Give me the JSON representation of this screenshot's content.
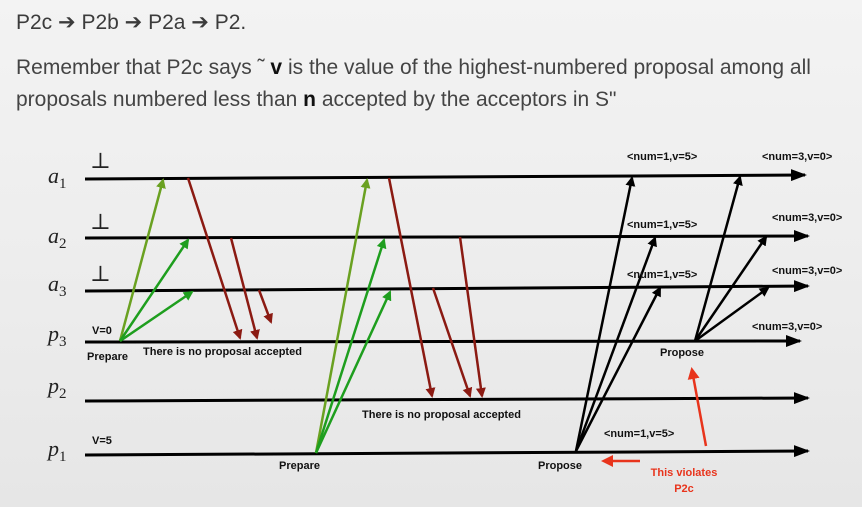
{
  "header": {
    "title": "P2c ➔ P2b ➔ P2a ➔ P2.",
    "subtitle_parts": [
      "Remember that P2c says ˜ ",
      "v",
      " is the value of the highest-numbered proposal among all proposals numbered less than ",
      "n",
      " accepted by the acceptors in S\""
    ]
  },
  "processes": [
    {
      "id": "a1",
      "letter": "a",
      "sub": "1",
      "init": "⊥"
    },
    {
      "id": "a2",
      "letter": "a",
      "sub": "2",
      "init": "⊥"
    },
    {
      "id": "a3",
      "letter": "a",
      "sub": "3",
      "init": "⊥"
    },
    {
      "id": "p3",
      "letter": "p",
      "sub": "3",
      "init": "V=0"
    },
    {
      "id": "p2",
      "letter": "p",
      "sub": "2",
      "init": ""
    },
    {
      "id": "p1",
      "letter": "p",
      "sub": "1",
      "init": "V=5"
    }
  ],
  "labels": {
    "prepare_p3": "Prepare",
    "no_proposal_1": "There is no proposal accepted",
    "prepare_p1": "Prepare",
    "no_proposal_2": "There is no proposal accepted",
    "propose_p1": "Propose",
    "propose_p3": "Propose",
    "violation_line1": "This violates",
    "violation_line2": "P2c",
    "a1_num1": "<num=1,v=5>",
    "a1_num3": "<num=3,v=0>",
    "a2_num1": "<num=1,v=5>",
    "a2_num3": "<num=3,v=0>",
    "a3_num1": "<num=1,v=5>",
    "a3_num3": "<num=3,v=0>",
    "p3_num3": "<num=3,v=0>",
    "p1_num1": "<num=1,v=5>"
  },
  "colors": {
    "timeline": "#000000",
    "prepare_light": "#6aa121",
    "prepare_dark": "#1e9e1e",
    "promise": "#8b1a12",
    "propose": "#000000",
    "violation": "#e8341c"
  }
}
